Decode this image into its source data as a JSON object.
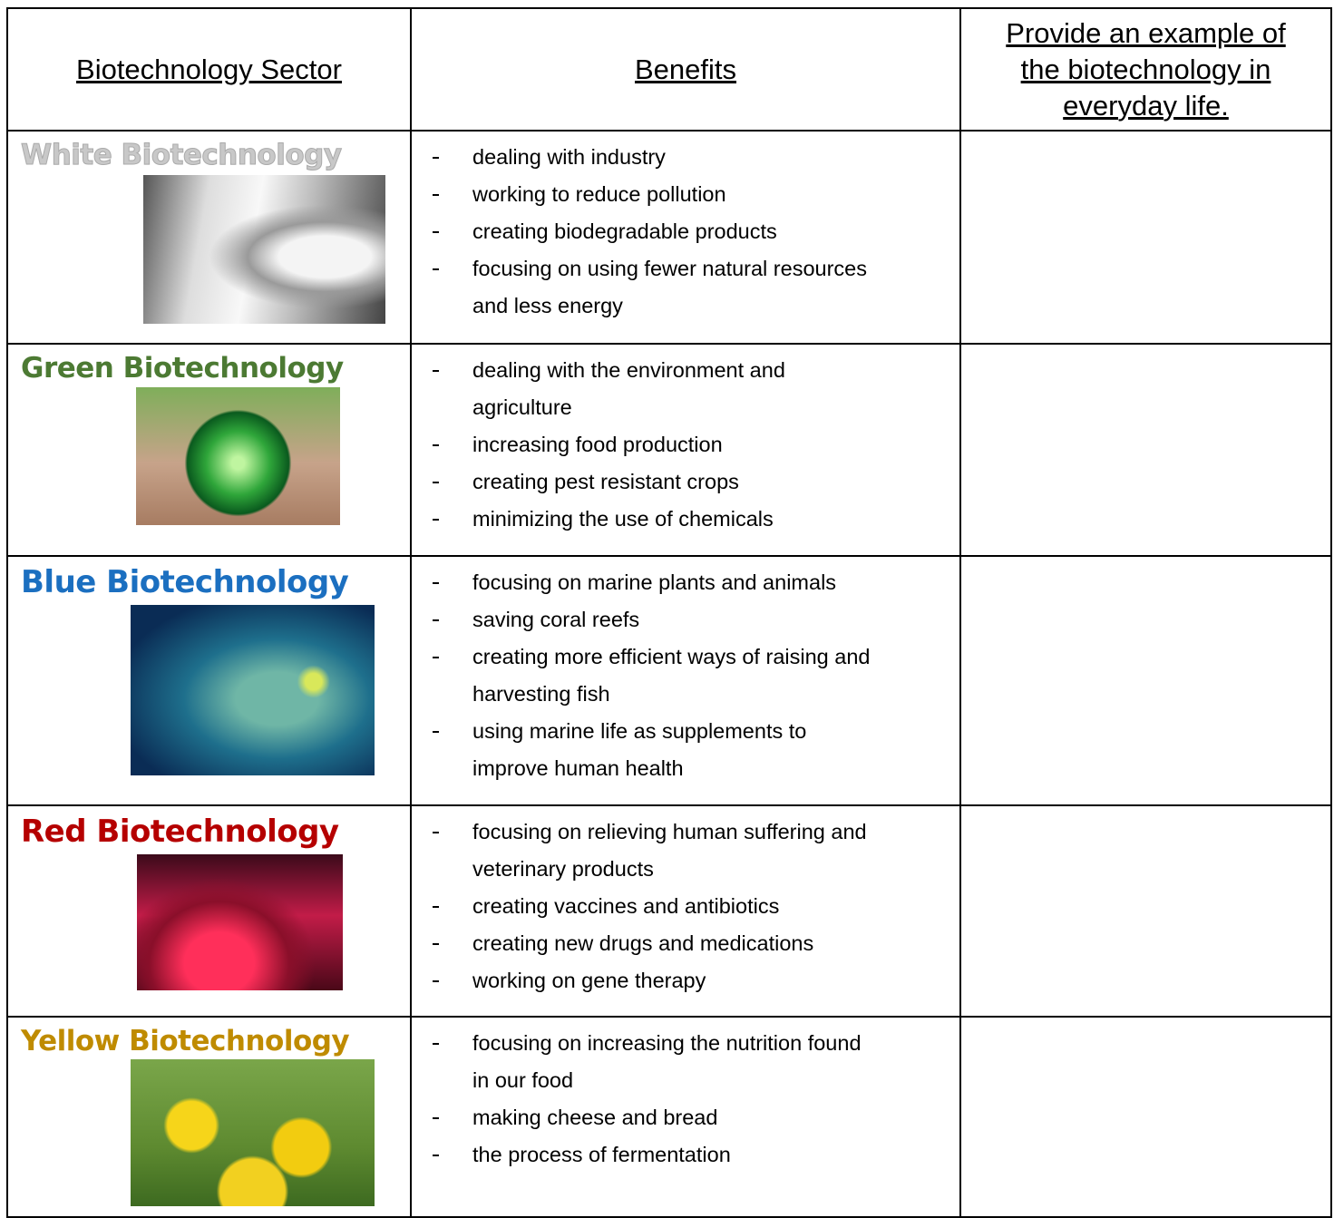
{
  "table": {
    "header": [
      "Biotechnology Sector",
      "Benefits",
      [
        "Provide an example of",
        "the biotechnology in",
        "everyday life."
      ]
    ],
    "rows": [
      {
        "sector": "White Biotechnology",
        "benefits": [
          [
            "dealing with industry"
          ],
          [
            "working to reduce pollution"
          ],
          [
            "creating biodegradable products"
          ],
          [
            "focusing on using fewer natural resources",
            "and less energy"
          ]
        ]
      },
      {
        "sector": "Green Biotechnology",
        "benefits": [
          [
            "dealing with the environment and",
            "agriculture"
          ],
          [
            "increasing food production"
          ],
          [
            "creating pest resistant crops"
          ],
          [
            "minimizing the use of chemicals"
          ]
        ]
      },
      {
        "sector": "Blue Biotechnology",
        "benefits": [
          [
            "focusing on marine plants and animals"
          ],
          [
            "saving coral reefs"
          ],
          [
            "creating more efficient ways of raising and",
            "harvesting fish"
          ],
          [
            "using marine life as supplements to",
            "improve human health"
          ]
        ]
      },
      {
        "sector": "Red Biotechnology",
        "benefits": [
          [
            "focusing on relieving human suffering and",
            "veterinary products"
          ],
          [
            "creating vaccines and antibiotics"
          ],
          [
            "creating new drugs and medications"
          ],
          [
            "working on gene therapy"
          ]
        ]
      },
      {
        "sector": "Yellow Biotechnology",
        "benefits": [
          [
            "focusing on increasing the nutrition found",
            "in our food"
          ],
          [
            "making cheese and bread"
          ],
          [
            "the process of fermentation"
          ]
        ]
      }
    ]
  }
}
